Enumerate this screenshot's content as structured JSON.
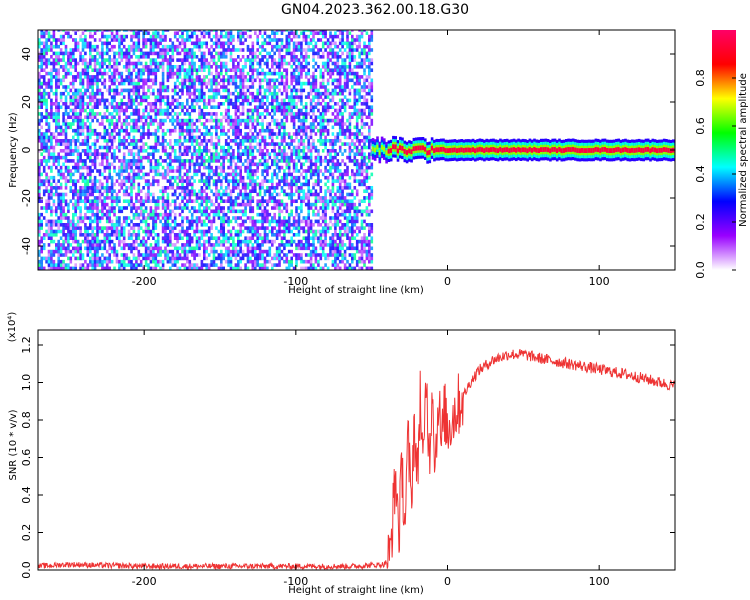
{
  "title": "GN04.2023.362.00.18.G30",
  "chart_data": [
    {
      "type": "heatmap",
      "xlabel": "Height of straight line (km)",
      "ylabel": "Frequency (Hz)",
      "xlim": [
        -270,
        150
      ],
      "ylim": [
        -50,
        50
      ],
      "xticks": [
        -200,
        -100,
        0,
        100
      ],
      "yticks": [
        -40,
        -20,
        0,
        20,
        40
      ],
      "grid": false,
      "colorbar": {
        "label": "Normalized spectral amplitude",
        "range": [
          0,
          1
        ],
        "ticks": [
          "0.0",
          "0.2",
          "0.4",
          "0.6",
          "0.8"
        ],
        "colors": [
          "#ffffff",
          "#9900ff",
          "#0000ff",
          "#00ffff",
          "#00ff00",
          "#ffff00",
          "#ff0000",
          "#ff0066"
        ]
      },
      "regions": [
        {
          "x_from": -270,
          "x_to": -50,
          "description": "broadband noise, low amplitude 0.1-0.5 across all frequencies"
        },
        {
          "x_from": -50,
          "x_to": 150,
          "frequency": 0,
          "amplitude": 0.95,
          "description": "narrow peak near 0 Hz"
        }
      ],
      "noise_segment": {
        "x_from": -270,
        "x_to": -50,
        "amplitude_range": [
          0.05,
          0.5
        ]
      },
      "signal_segment": {
        "x_from": -50,
        "x_to": 150,
        "center_frequency": 0,
        "peak_amplitude": 0.95
      }
    },
    {
      "type": "line",
      "xlabel": "Height of straight line (km)",
      "ylabel": "SNR (10 * v/v)",
      "y_multiplier": "(x10⁴)",
      "xlim": [
        -270,
        150
      ],
      "ylim": [
        0,
        1.28
      ],
      "xticks": [
        -200,
        -100,
        0,
        100
      ],
      "yticks": [
        "0.0",
        "0.2",
        "0.4",
        "0.6",
        "0.8",
        "1.0",
        "1.2"
      ],
      "grid": false,
      "series": [
        {
          "color": "#ee3333",
          "x": [
            -270,
            -250,
            -230,
            -200,
            -150,
            -100,
            -60,
            -42,
            -38,
            -36,
            -34,
            -32,
            -30,
            -28,
            -26,
            -24,
            -22,
            -20,
            -18,
            -16,
            -14,
            -12,
            -10,
            -8,
            -6,
            -4,
            -2,
            0,
            5,
            10,
            15,
            20,
            30,
            40,
            50,
            60,
            80,
            100,
            120,
            140,
            150
          ],
          "y": [
            0.02,
            0.03,
            0.025,
            0.02,
            0.02,
            0.02,
            0.02,
            0.03,
            0.06,
            0.3,
            0.5,
            0.2,
            0.55,
            0.25,
            0.7,
            0.35,
            0.8,
            0.45,
            0.95,
            0.5,
            1.05,
            0.6,
            1.0,
            0.55,
            0.95,
            0.65,
            0.85,
            0.75,
            0.85,
            0.92,
            1.0,
            1.06,
            1.12,
            1.15,
            1.15,
            1.13,
            1.1,
            1.07,
            1.04,
            1.0,
            0.98
          ]
        }
      ]
    }
  ]
}
